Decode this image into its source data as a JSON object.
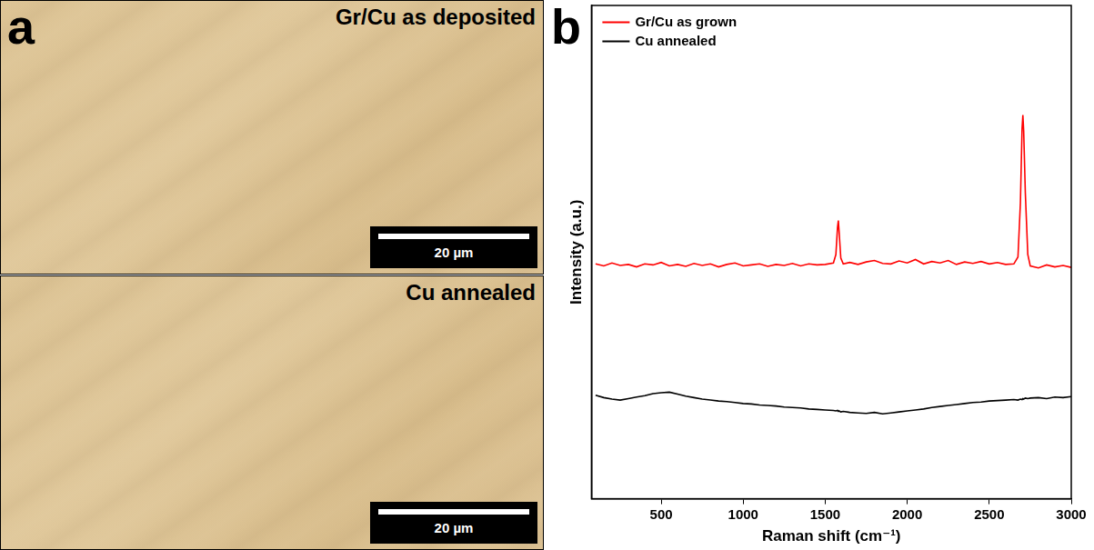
{
  "panel_a": {
    "letter": "a",
    "images": [
      {
        "label": "Gr/Cu as deposited",
        "scale_bar": "20 µm"
      },
      {
        "label": "Cu annealed",
        "scale_bar": "20 µm"
      }
    ]
  },
  "panel_b": {
    "letter": "b"
  },
  "chart_data": {
    "type": "line",
    "x_label": "Raman shift (cm⁻¹)",
    "y_label": "Intensity (a.u.)",
    "x": [
      100,
      150,
      200,
      250,
      300,
      350,
      400,
      450,
      500,
      550,
      600,
      650,
      700,
      750,
      800,
      850,
      900,
      950,
      1000,
      1050,
      1100,
      1150,
      1200,
      1250,
      1300,
      1350,
      1400,
      1450,
      1500,
      1550,
      1565,
      1575,
      1580,
      1585,
      1595,
      1610,
      1650,
      1700,
      1750,
      1800,
      1850,
      1900,
      1950,
      2000,
      2050,
      2100,
      2150,
      2200,
      2250,
      2300,
      2350,
      2400,
      2450,
      2500,
      2550,
      2600,
      2650,
      2675,
      2690,
      2700,
      2705,
      2710,
      2720,
      2735,
      2750,
      2800,
      2850,
      2900,
      2950,
      3000
    ],
    "series": [
      {
        "name": "Gr/Cu as grown",
        "color": "#ff0000",
        "values": [
          47.6,
          47.2,
          47.8,
          47.3,
          47.5,
          47.0,
          47.6,
          47.4,
          47.9,
          47.2,
          47.5,
          47.1,
          47.7,
          47.3,
          47.6,
          47.0,
          47.5,
          47.8,
          47.2,
          47.4,
          47.6,
          47.1,
          47.5,
          47.3,
          47.7,
          47.2,
          47.6,
          47.4,
          47.5,
          47.8,
          49.5,
          55.0,
          56.4,
          54.0,
          48.8,
          47.6,
          47.9,
          47.5,
          48.0,
          48.3,
          47.7,
          47.6,
          48.2,
          47.8,
          48.5,
          47.6,
          48.1,
          47.8,
          48.3,
          47.5,
          48.0,
          47.7,
          48.1,
          47.6,
          47.9,
          47.5,
          47.6,
          49.0,
          60.0,
          75.0,
          77.8,
          74.5,
          62.0,
          49.5,
          47.2,
          46.8,
          47.4,
          47.0,
          47.3,
          46.9
        ]
      },
      {
        "name": "Cu annealed",
        "color": "#000000",
        "values": [
          21.0,
          20.5,
          20.2,
          20.0,
          20.3,
          20.6,
          20.9,
          21.3,
          21.5,
          21.6,
          21.2,
          20.8,
          20.5,
          20.2,
          20.0,
          19.8,
          19.7,
          19.5,
          19.3,
          19.2,
          19.0,
          18.9,
          18.8,
          18.6,
          18.5,
          18.4,
          18.2,
          18.1,
          18.0,
          17.9,
          17.8,
          17.9,
          17.7,
          17.8,
          17.6,
          17.7,
          17.5,
          17.4,
          17.3,
          17.5,
          17.2,
          17.4,
          17.6,
          17.8,
          18.0,
          18.2,
          18.5,
          18.7,
          18.9,
          19.1,
          19.3,
          19.5,
          19.6,
          19.8,
          19.9,
          20.0,
          20.1,
          20.0,
          20.2,
          20.1,
          20.3,
          20.2,
          20.4,
          20.3,
          20.4,
          20.5,
          20.3,
          20.6,
          20.5,
          20.7
        ]
      }
    ],
    "xlim": [
      75,
      3000
    ],
    "xticks": [
      500,
      1000,
      1500,
      2000,
      2500,
      3000
    ],
    "ylim": [
      0,
      100
    ],
    "tick_labels": "x",
    "grid": false,
    "legend": "upper left"
  }
}
